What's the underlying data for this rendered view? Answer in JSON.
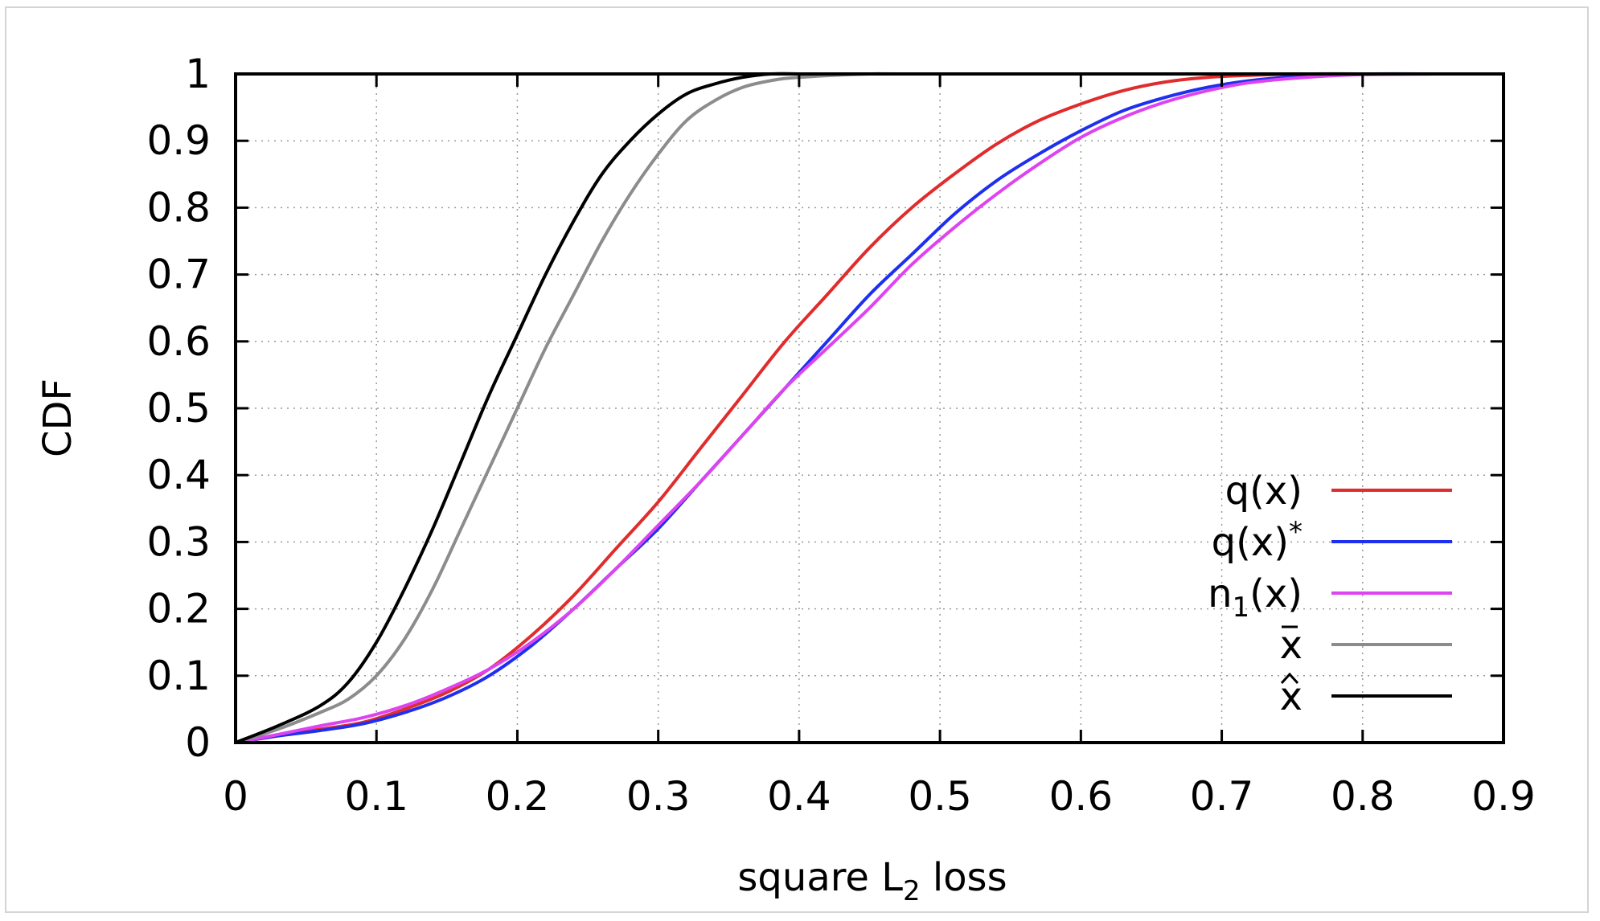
{
  "chart_data": {
    "type": "line",
    "xlabel": "square L",
    "xlabel_sub": "2",
    "xlabel_suffix": " loss",
    "ylabel": "CDF",
    "xlim": [
      0,
      0.9
    ],
    "ylim": [
      0,
      1
    ],
    "grid": true,
    "legend_position": "right, lower",
    "xticks": [
      "0",
      "0.1",
      "0.2",
      "0.3",
      "0.4",
      "0.5",
      "0.6",
      "0.7",
      "0.8",
      "0.9"
    ],
    "yticks": [
      "0",
      "0.1",
      "0.2",
      "0.3",
      "0.4",
      "0.5",
      "0.6",
      "0.7",
      "0.8",
      "0.9",
      "1"
    ],
    "series": [
      {
        "name": "q(x)",
        "label_main": "q(x)",
        "label_sub": "",
        "label_sup": "",
        "label_mark": "",
        "color": "#e02c2c",
        "x": [
          0,
          0.03,
          0.06,
          0.09,
          0.12,
          0.15,
          0.18,
          0.21,
          0.24,
          0.27,
          0.3,
          0.33,
          0.36,
          0.39,
          0.42,
          0.45,
          0.48,
          0.51,
          0.54,
          0.57,
          0.6,
          0.63,
          0.66,
          0.69,
          0.72,
          0.76,
          0.8,
          0.86
        ],
        "y": [
          0,
          0.01,
          0.02,
          0.03,
          0.05,
          0.075,
          0.11,
          0.16,
          0.22,
          0.29,
          0.36,
          0.44,
          0.52,
          0.6,
          0.67,
          0.74,
          0.8,
          0.85,
          0.895,
          0.93,
          0.955,
          0.975,
          0.988,
          0.995,
          0.998,
          1,
          1,
          1
        ]
      },
      {
        "name": "q(x)*",
        "label_main": "q(x)",
        "label_sub": "",
        "label_sup": "*",
        "label_mark": "",
        "color": "#1f2ff0",
        "x": [
          0,
          0.03,
          0.06,
          0.09,
          0.12,
          0.15,
          0.18,
          0.21,
          0.24,
          0.27,
          0.3,
          0.33,
          0.36,
          0.39,
          0.42,
          0.45,
          0.48,
          0.51,
          0.54,
          0.57,
          0.6,
          0.63,
          0.66,
          0.69,
          0.72,
          0.76,
          0.8,
          0.86
        ],
        "y": [
          0,
          0.01,
          0.018,
          0.028,
          0.045,
          0.068,
          0.1,
          0.145,
          0.2,
          0.26,
          0.32,
          0.39,
          0.46,
          0.53,
          0.6,
          0.67,
          0.73,
          0.79,
          0.84,
          0.88,
          0.915,
          0.945,
          0.965,
          0.98,
          0.99,
          0.997,
          1,
          1
        ]
      },
      {
        "name": "n1(x)",
        "label_main": "n",
        "label_sub": "1",
        "label_sup": "",
        "label_suffix": "(x)",
        "label_mark": "",
        "color": "#dd44f0",
        "x": [
          0,
          0.03,
          0.06,
          0.09,
          0.12,
          0.15,
          0.18,
          0.21,
          0.24,
          0.27,
          0.3,
          0.33,
          0.36,
          0.39,
          0.42,
          0.45,
          0.48,
          0.51,
          0.54,
          0.57,
          0.6,
          0.63,
          0.66,
          0.69,
          0.72,
          0.76,
          0.8,
          0.86
        ],
        "y": [
          0,
          0.012,
          0.025,
          0.037,
          0.055,
          0.08,
          0.11,
          0.15,
          0.2,
          0.26,
          0.325,
          0.39,
          0.46,
          0.53,
          0.59,
          0.65,
          0.715,
          0.77,
          0.82,
          0.865,
          0.905,
          0.935,
          0.958,
          0.975,
          0.987,
          0.995,
          0.999,
          1
        ]
      },
      {
        "name": "x̄",
        "label_main": "x",
        "label_sub": "",
        "label_sup": "",
        "label_mark": "bar",
        "color": "#8c8c8c",
        "x": [
          0,
          0.03,
          0.06,
          0.08,
          0.1,
          0.12,
          0.14,
          0.16,
          0.18,
          0.2,
          0.22,
          0.24,
          0.26,
          0.28,
          0.3,
          0.32,
          0.34,
          0.36,
          0.38,
          0.4,
          0.45,
          0.5,
          0.86
        ],
        "y": [
          0,
          0.02,
          0.045,
          0.065,
          0.1,
          0.155,
          0.23,
          0.32,
          0.41,
          0.5,
          0.59,
          0.67,
          0.75,
          0.82,
          0.88,
          0.93,
          0.96,
          0.98,
          0.99,
          0.995,
          1,
          1,
          1
        ]
      },
      {
        "name": "x̂",
        "label_main": "x",
        "label_sub": "",
        "label_sup": "",
        "label_mark": "hat",
        "color": "#000000",
        "x": [
          0,
          0.03,
          0.06,
          0.08,
          0.1,
          0.12,
          0.14,
          0.16,
          0.18,
          0.2,
          0.22,
          0.24,
          0.26,
          0.28,
          0.3,
          0.32,
          0.34,
          0.36,
          0.38,
          0.4,
          0.45,
          0.5,
          0.86
        ],
        "y": [
          0,
          0.025,
          0.055,
          0.09,
          0.15,
          0.23,
          0.32,
          0.42,
          0.52,
          0.61,
          0.7,
          0.78,
          0.85,
          0.9,
          0.94,
          0.97,
          0.985,
          0.995,
          1,
          1,
          1,
          1,
          1
        ]
      }
    ]
  }
}
